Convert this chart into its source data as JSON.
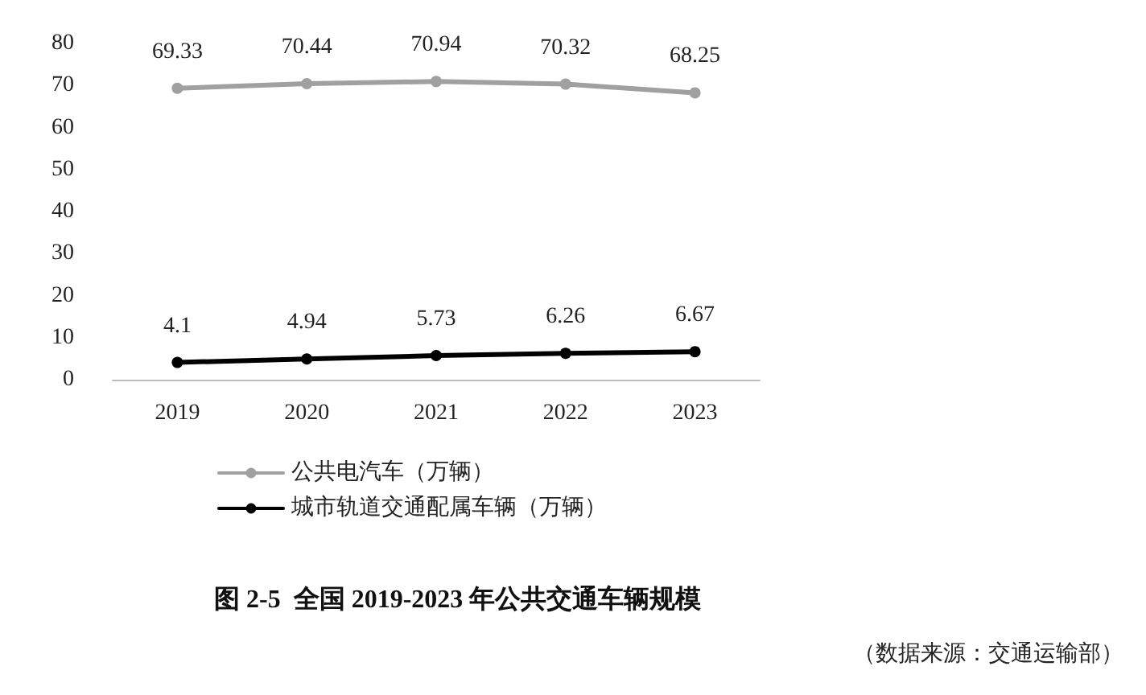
{
  "chart_data": {
    "type": "line",
    "title": "图 2-5  全国 2019-2023 年公共交通车辆规模",
    "annotations": [
      "（数据来源：交通运输部）"
    ],
    "categories": [
      "2019",
      "2020",
      "2021",
      "2022",
      "2023"
    ],
    "series": [
      {
        "name": "公共电汽车（万辆）",
        "color": "#a0a0a0",
        "values": [
          69.33,
          70.44,
          70.94,
          70.32,
          68.25
        ]
      },
      {
        "name": "城市轨道交通配属车辆（万辆）",
        "color": "#000000",
        "values": [
          4.1,
          4.94,
          5.73,
          6.26,
          6.67
        ]
      }
    ],
    "ylim": [
      0,
      80
    ],
    "yticks": [
      0,
      10,
      20,
      30,
      40,
      50,
      60,
      70,
      80
    ],
    "grid": false,
    "legend": "bottom left",
    "marker": "circle",
    "line_style": "solid",
    "data_labels": true
  }
}
